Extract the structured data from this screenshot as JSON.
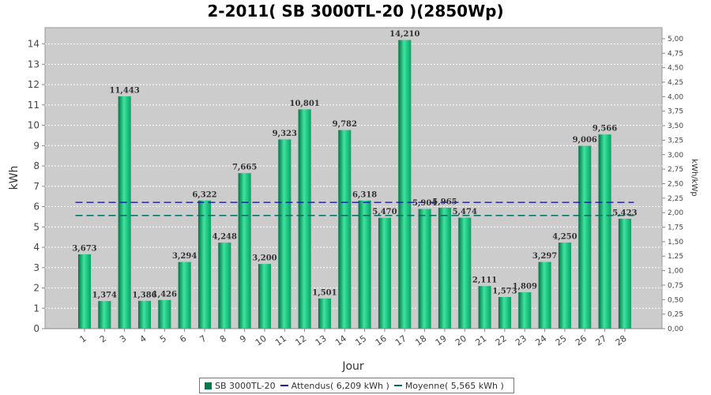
{
  "chart_data": {
    "type": "bar",
    "title": "2-2011( SB 3000TL-20 )(2850Wp)",
    "xlabel": "Jour",
    "ylabel": "kWh",
    "y2label": "kWh/kWp",
    "ylim": [
      0,
      14.8
    ],
    "y2lim": [
      0,
      5.19
    ],
    "yticks": [
      "0",
      "1",
      "2",
      "3",
      "4",
      "5",
      "6",
      "7",
      "8",
      "9",
      "10",
      "11",
      "12",
      "13",
      "14"
    ],
    "y2ticks": [
      "0,00",
      "0,25",
      "0,50",
      "0,75",
      "1,00",
      "1,25",
      "1,50",
      "1,75",
      "2,00",
      "2,25",
      "2,50",
      "2,75",
      "3,00",
      "3,25",
      "3,50",
      "3,75",
      "4,00",
      "4,25",
      "4,50",
      "4,75",
      "5,00"
    ],
    "categories": [
      "1",
      "2",
      "3",
      "4",
      "5",
      "6",
      "7",
      "8",
      "9",
      "10",
      "11",
      "12",
      "13",
      "14",
      "15",
      "16",
      "17",
      "18",
      "19",
      "20",
      "21",
      "22",
      "23",
      "24",
      "25",
      "26",
      "27",
      "28"
    ],
    "values": [
      3.673,
      1.374,
      11.443,
      1.386,
      1.426,
      3.294,
      6.322,
      4.248,
      7.665,
      3.2,
      9.323,
      10.801,
      1.501,
      9.782,
      6.318,
      5.47,
      14.21,
      5.904,
      5.965,
      5.474,
      2.111,
      1.573,
      1.809,
      3.297,
      4.25,
      9.006,
      9.566,
      5.423
    ],
    "value_labels": [
      "3,673",
      "1,374",
      "11,443",
      "1,386",
      "1,426",
      "3,294",
      "6,322",
      "4,248",
      "7,665",
      "3,200",
      "9,323",
      "10,801",
      "1,501",
      "9,782",
      "6,318",
      "5,470",
      "14,210",
      "5,904",
      "5,965",
      "5,474",
      "2,111",
      "1,573",
      "1,809",
      "3,297",
      "4,250",
      "9,006",
      "9,566",
      "5,423"
    ],
    "reference_lines": [
      {
        "name": "Attendus( 6,209 kWh )",
        "value": 6.209,
        "color": "#1a1aa8"
      },
      {
        "name": "Moyenne( 5,565 kWh )",
        "value": 5.565,
        "color": "#00705a"
      }
    ],
    "series": [
      {
        "name": "SB 3000TL-20",
        "color": "#00b46e"
      }
    ],
    "grid": true,
    "legend_position": "bottom",
    "colors": {
      "plot_bg": "#cccccc",
      "bar": "#00b46e",
      "bar_dark": "#007a48",
      "bar_light": "#7df0b8"
    }
  },
  "legend": {
    "bar_label": "SB 3000TL-20",
    "line1_label": "Attendus( 6,209 kWh )",
    "line2_label": "Moyenne( 5,565 kWh )"
  }
}
